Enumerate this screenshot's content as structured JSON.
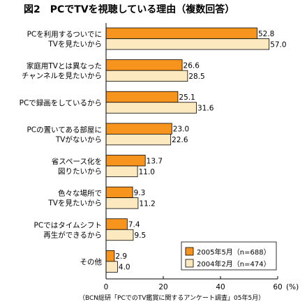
{
  "chart_data": {
    "type": "bar",
    "orientation": "horizontal",
    "title": "図2　PCでTVを視聴している理由（複数回答）",
    "categories": [
      [
        "PCを利用するついでに",
        "TVを見たいから"
      ],
      [
        "家庭用TVとは異なった",
        "チャンネルを見たいから"
      ],
      [
        "PCで録画をしているから"
      ],
      [
        "PCの置いてある部屋に",
        "TVがないから"
      ],
      [
        "省スペース化を",
        "図りたいから"
      ],
      [
        "色々な場所で",
        "TVを見たいから"
      ],
      [
        "PCではタイムシフト",
        "再生ができるから"
      ],
      [
        "その他"
      ]
    ],
    "series": [
      {
        "name": "2005年5月（n=688）",
        "color": "#f7941d",
        "values": [
          52.8,
          26.6,
          25.1,
          23.0,
          13.7,
          9.3,
          7.4,
          2.9
        ],
        "labels": [
          "52.8",
          "26.6",
          "25.1",
          "23.0",
          "13.7",
          "9.3",
          "7.4",
          "2.9"
        ]
      },
      {
        "name": "2004年2月（n=474）",
        "color": "#fde9c0",
        "values": [
          57.0,
          28.5,
          31.6,
          22.6,
          11.0,
          11.2,
          9.5,
          4.0
        ],
        "labels": [
          "57.0",
          "28.5",
          "31.6",
          "22.6",
          "11.0",
          "11.2",
          "9.5",
          "4.0"
        ]
      }
    ],
    "xlim": [
      0,
      60
    ],
    "xticks": [
      "0",
      "20",
      "40",
      "60"
    ],
    "xunit": "(%)",
    "legend": "bottom-right",
    "source": "（BCN総研「PCでのTV鑑賞に関するアンケート調査」05年5月）"
  }
}
